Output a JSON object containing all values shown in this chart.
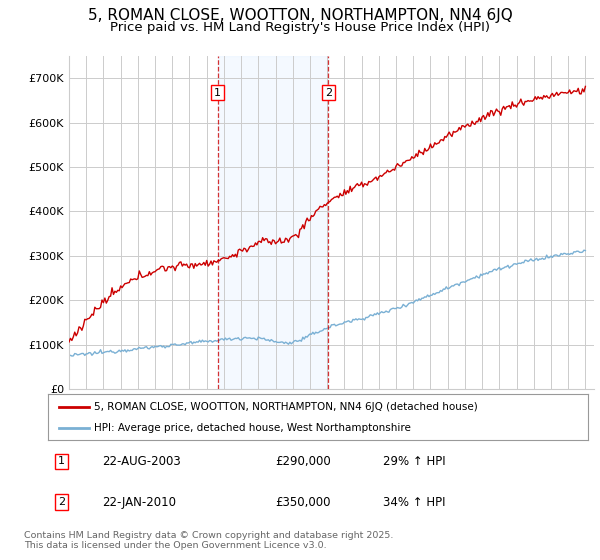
{
  "title": "5, ROMAN CLOSE, WOOTTON, NORTHAMPTON, NN4 6JQ",
  "subtitle": "Price paid vs. HM Land Registry's House Price Index (HPI)",
  "ylim": [
    0,
    750000
  ],
  "yticks": [
    0,
    100000,
    200000,
    300000,
    400000,
    500000,
    600000,
    700000
  ],
  "ytick_labels": [
    "£0",
    "£100K",
    "£200K",
    "£300K",
    "£400K",
    "£500K",
    "£600K",
    "£700K"
  ],
  "bg_color": "#ffffff",
  "grid_color": "#cccccc",
  "line1_color": "#cc0000",
  "line2_color": "#7ab0d4",
  "shade_color": "#ddeeff",
  "marker1_year": 2003.64,
  "marker2_year": 2010.06,
  "marker1_label": "1",
  "marker2_label": "2",
  "marker1_date": "22-AUG-2003",
  "marker1_price": "£290,000",
  "marker1_hpi": "29% ↑ HPI",
  "marker2_date": "22-JAN-2010",
  "marker2_price": "£350,000",
  "marker2_hpi": "34% ↑ HPI",
  "legend1": "5, ROMAN CLOSE, WOOTTON, NORTHAMPTON, NN4 6JQ (detached house)",
  "legend2": "HPI: Average price, detached house, West Northamptonshire",
  "footnote": "Contains HM Land Registry data © Crown copyright and database right 2025.\nThis data is licensed under the Open Government Licence v3.0.",
  "title_fontsize": 11,
  "subtitle_fontsize": 9.5,
  "tick_fontsize": 8
}
